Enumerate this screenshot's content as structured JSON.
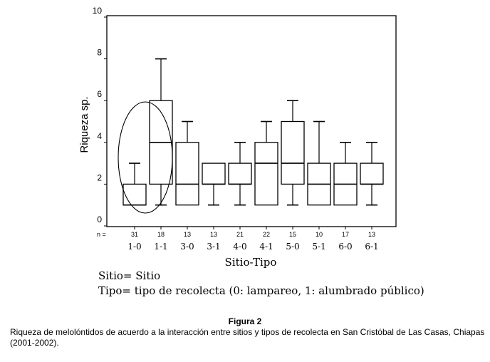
{
  "chart_data": {
    "type": "boxplot",
    "xlabel": "Sitio-Tipo",
    "ylabel": "Riqueza sp.",
    "ylim": [
      0,
      10
    ],
    "yticks": [
      0,
      2,
      4,
      6,
      8,
      10
    ],
    "n_prefix": "n =",
    "categories": [
      "1-0",
      "1-1",
      "3-0",
      "3-1",
      "4-0",
      "4-1",
      "5-0",
      "5-1",
      "6-0",
      "6-1"
    ],
    "n": [
      "31",
      "18",
      "13",
      "13",
      "21",
      "22",
      "15",
      "10",
      "17",
      "13"
    ],
    "boxes": [
      {
        "min": 1,
        "q1": 1,
        "median": 1,
        "q3": 2,
        "max": 3
      },
      {
        "min": 1,
        "q1": 2,
        "median": 4,
        "q3": 6,
        "max": 8
      },
      {
        "min": 1,
        "q1": 1,
        "median": 2,
        "q3": 4,
        "max": 5
      },
      {
        "min": 1,
        "q1": 2,
        "median": 2,
        "q3": 3,
        "max": 3
      },
      {
        "min": 1,
        "q1": 2,
        "median": 2,
        "q3": 3,
        "max": 4
      },
      {
        "min": 1,
        "q1": 1,
        "median": 3,
        "q3": 4,
        "max": 5
      },
      {
        "min": 1,
        "q1": 2,
        "median": 3,
        "q3": 5,
        "max": 6
      },
      {
        "min": 1,
        "q1": 1,
        "median": 2,
        "q3": 3,
        "max": 5
      },
      {
        "min": 1,
        "q1": 1,
        "median": 2,
        "q3": 3,
        "max": 4
      },
      {
        "min": 1,
        "q1": 2,
        "median": 2,
        "q3": 3,
        "max": 4
      }
    ],
    "highlight": {
      "categories": [
        "1-0",
        "1-1"
      ],
      "shape": "ellipse"
    },
    "grid": false
  },
  "legend": {
    "line1": "Sitio= Sitio",
    "line2": "Tipo= tipo de recolecta (0: lampareo, 1: alumbrado público)"
  },
  "figure": {
    "title": "Figura 2",
    "caption": "Riqueza de melolóntidos de acuerdo a la interacción entre sitios y tipos de recolecta en San Cristóbal de Las Casas, Chiapas (2001-2002)."
  }
}
